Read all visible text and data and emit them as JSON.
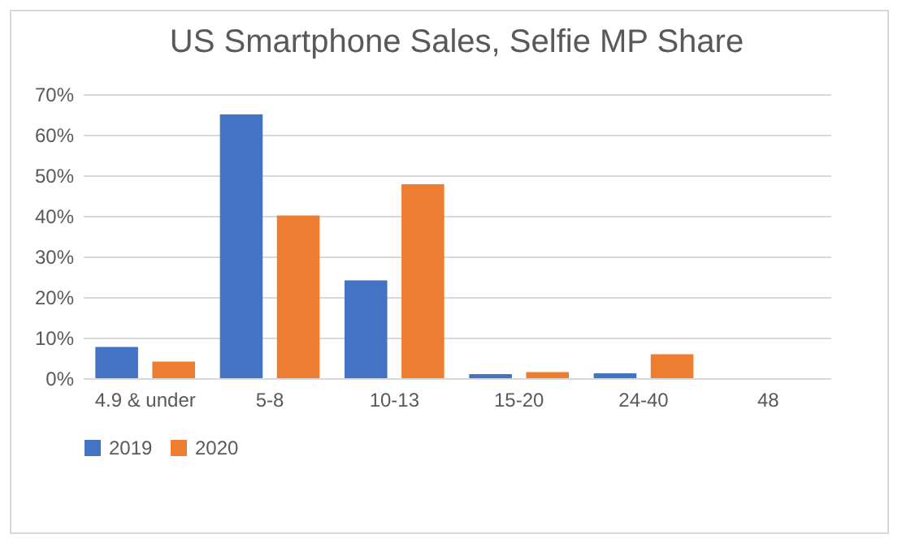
{
  "chart_data": {
    "type": "bar",
    "title": "US Smartphone Sales, Selfie MP Share",
    "categories": [
      "4.9 & under",
      "5-8",
      "10-13",
      "15-20",
      "24-40",
      "48"
    ],
    "series": [
      {
        "name": "2019",
        "color": "#4472c4",
        "values": [
          7.7,
          65,
          24.1,
          1.0,
          1.2,
          0
        ]
      },
      {
        "name": "2020",
        "color": "#ed7d31",
        "values": [
          4.1,
          40.1,
          47.8,
          1.5,
          5.9,
          0
        ]
      }
    ],
    "ylim": [
      0,
      70
    ],
    "yticks": [
      {
        "value": 0,
        "label": "0%"
      },
      {
        "value": 10,
        "label": "10%"
      },
      {
        "value": 20,
        "label": "20%"
      },
      {
        "value": 30,
        "label": "30%"
      },
      {
        "value": 40,
        "label": "40%"
      },
      {
        "value": 50,
        "label": "50%"
      },
      {
        "value": 60,
        "label": "60%"
      },
      {
        "value": 70,
        "label": "70%"
      }
    ],
    "grid": "y",
    "legend": "bottom"
  }
}
